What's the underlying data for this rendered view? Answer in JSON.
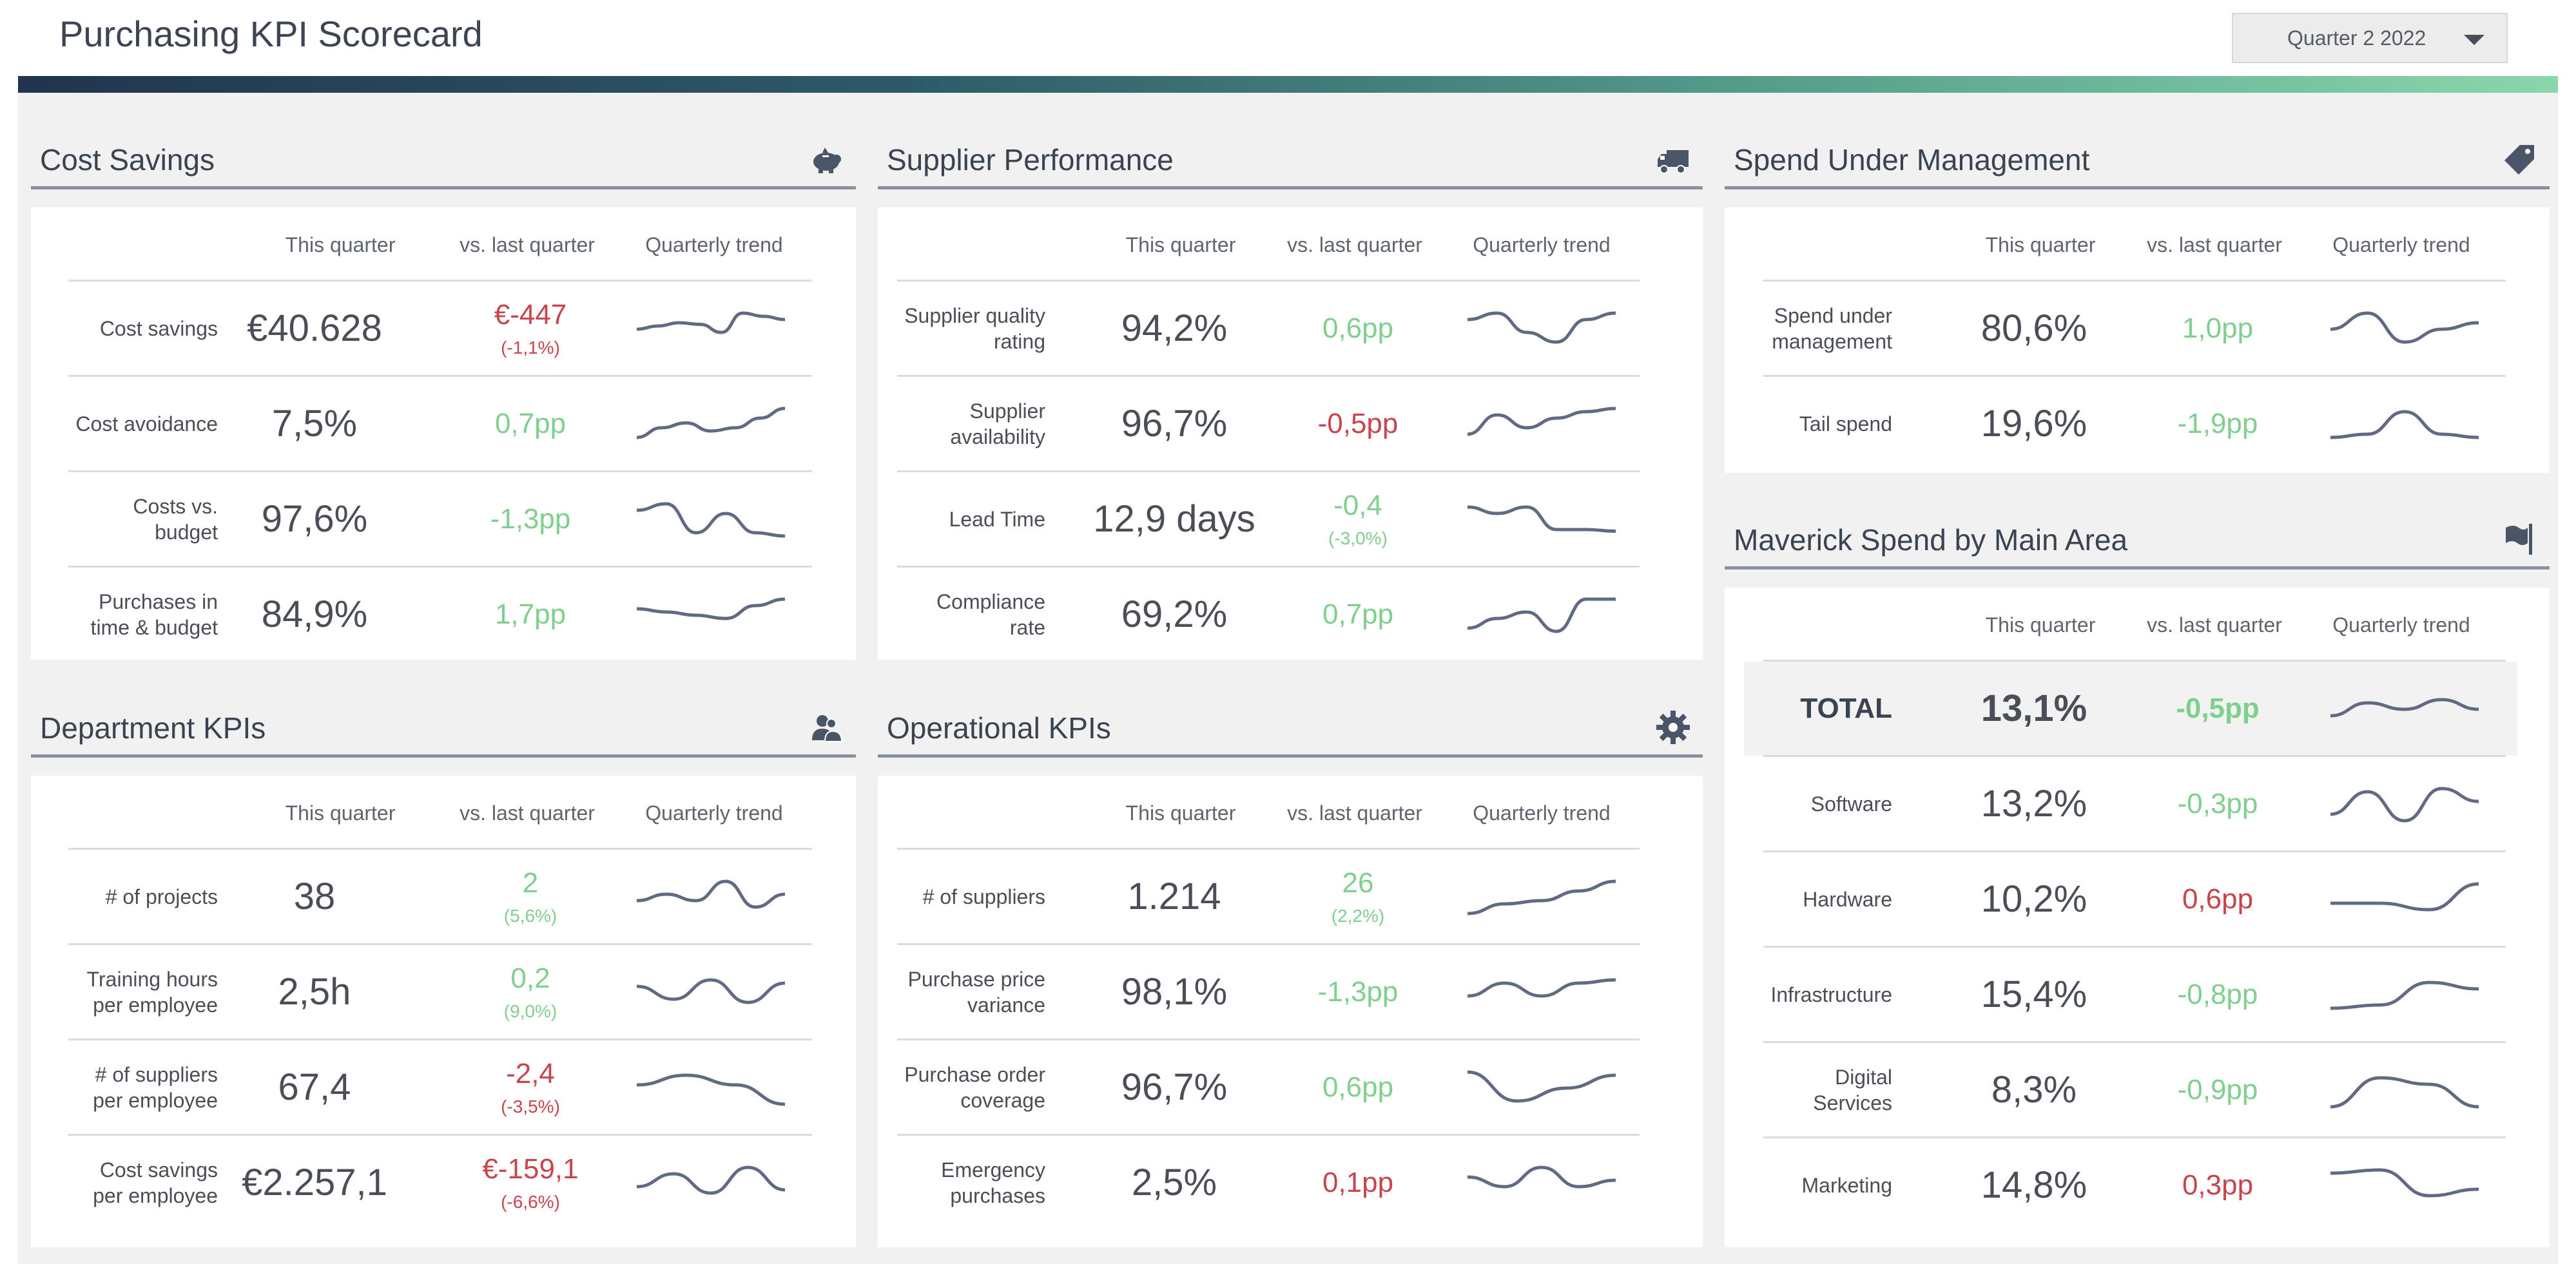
{
  "header": {
    "title": "Purchasing KPI Scorecard",
    "period": "Quarter 2 2022"
  },
  "columns": {
    "this_quarter": "This quarter",
    "vs_last": "vs. last quarter",
    "trend": "Quarterly trend"
  },
  "colors": {
    "positive": "#7fcf8e",
    "negative": "#c8454d",
    "sparkline": "#606a82"
  },
  "panels": {
    "cost_savings": {
      "title": "Cost Savings",
      "icon": "piggy-bank-icon",
      "rows": [
        {
          "label": "Cost savings",
          "value": "€40.628",
          "delta": "€-447",
          "delta_sub": "(-1,1%)",
          "status": "negative",
          "trend": [
            0.5,
            0.4,
            0.3,
            0.35,
            0.6,
            0.0,
            0.1,
            0.2
          ]
        },
        {
          "label": "Cost avoidance",
          "value": "7,5%",
          "delta": "0,7pp",
          "status": "positive",
          "trend": [
            0.9,
            0.6,
            0.45,
            0.7,
            0.6,
            0.3,
            0.0
          ]
        },
        {
          "label": "Costs vs. budget",
          "value": "97,6%",
          "delta": "-1,3pp",
          "status": "positive",
          "trend": [
            0.2,
            0.0,
            0.9,
            0.3,
            0.9,
            1.0
          ]
        },
        {
          "label": "Purchases in time & budget",
          "value": "84,9%",
          "delta": "1,7pp",
          "status": "positive",
          "trend": [
            0.3,
            0.4,
            0.5,
            0.6,
            0.2,
            0.0
          ]
        }
      ]
    },
    "supplier_performance": {
      "title": "Supplier Performance",
      "icon": "truck-icon",
      "rows": [
        {
          "label": "Supplier quality rating",
          "value": "94,2%",
          "delta": "0,6pp",
          "status": "positive",
          "trend": [
            0.2,
            0.0,
            0.6,
            0.9,
            0.2,
            0.0
          ]
        },
        {
          "label": "Supplier availability",
          "value": "96,7%",
          "delta": "-0,5pp",
          "status": "negative",
          "trend": [
            0.8,
            0.2,
            0.6,
            0.3,
            0.1,
            0.0
          ]
        },
        {
          "label": "Lead Time",
          "value": "12,9 days",
          "delta": "-0,4",
          "delta_sub": "(-3,0%)",
          "status": "positive",
          "trend": [
            0.1,
            0.3,
            0.1,
            0.8,
            0.8,
            0.85
          ]
        },
        {
          "label": "Compliance rate",
          "value": "69,2%",
          "delta": "0,7pp",
          "status": "positive",
          "trend": [
            0.9,
            0.6,
            0.4,
            1.0,
            0.0,
            0.0
          ]
        }
      ]
    },
    "spend_under_management": {
      "title": "Spend Under Management",
      "icon": "price-tag-icon",
      "rows": [
        {
          "label": "Spend under management",
          "value": "80,6%",
          "delta": "1,0pp",
          "status": "positive",
          "trend": [
            0.5,
            0.0,
            0.9,
            0.5,
            0.3
          ]
        },
        {
          "label": "Tail spend",
          "value": "19,6%",
          "delta": "-1,9pp",
          "status": "positive",
          "trend": [
            0.9,
            0.8,
            0.1,
            0.8,
            0.9
          ]
        }
      ]
    },
    "department_kpis": {
      "title": "Department KPIs",
      "icon": "user-group-icon",
      "rows": [
        {
          "label": "# of projects",
          "value": "38",
          "delta": "2",
          "delta_sub": "(5,6%)",
          "status": "positive",
          "trend": [
            0.6,
            0.4,
            0.6,
            0.0,
            0.8,
            0.4
          ]
        },
        {
          "label": "Training hours per employee",
          "value": "2,5h",
          "delta": "0,2",
          "delta_sub": "(9,0%)",
          "status": "positive",
          "trend": [
            0.3,
            0.7,
            0.1,
            0.8,
            0.2
          ]
        },
        {
          "label": "# of suppliers per employee",
          "value": "67,4",
          "delta": "-2,4",
          "delta_sub": "(-3,5%)",
          "status": "negative",
          "trend": [
            0.4,
            0.1,
            0.4,
            1.0
          ]
        },
        {
          "label": "Cost savings per employee",
          "value": "€2.257,1",
          "delta": "€-159,1",
          "delta_sub": "(-6,6%)",
          "status": "negative",
          "trend": [
            0.6,
            0.2,
            0.8,
            0.0,
            0.7
          ]
        }
      ]
    },
    "operational_kpis": {
      "title": "Operational KPIs",
      "icon": "gear-icon",
      "rows": [
        {
          "label": "# of suppliers",
          "value": "1.214",
          "delta": "26",
          "delta_sub": "(2,2%)",
          "status": "positive",
          "trend": [
            1.0,
            0.7,
            0.6,
            0.3,
            0.0
          ]
        },
        {
          "label": "Purchase price variance",
          "value": "98,1%",
          "delta": "-1,3pp",
          "status": "positive",
          "trend": [
            0.6,
            0.2,
            0.6,
            0.2,
            0.1
          ]
        },
        {
          "label": "Purchase order coverage",
          "value": "96,7%",
          "delta": "0,6pp",
          "status": "positive",
          "trend": [
            0.0,
            0.9,
            0.5,
            0.1
          ]
        },
        {
          "label": "Emergency purchases",
          "value": "2,5%",
          "delta": "0,1pp",
          "status": "negative",
          "trend": [
            0.3,
            0.6,
            0.0,
            0.6,
            0.4
          ]
        }
      ]
    },
    "maverick_spend": {
      "title": "Maverick Spend by Main Area",
      "icon": "flag-icon",
      "rows": [
        {
          "label": "TOTAL",
          "value": "13,1%",
          "delta": "-0,5pp",
          "status": "positive",
          "trend": [
            0.7,
            0.3,
            0.5,
            0.2,
            0.5
          ],
          "bold": true
        },
        {
          "label": "Software",
          "value": "13,2%",
          "delta": "-0,3pp",
          "status": "positive",
          "trend": [
            0.8,
            0.1,
            1.0,
            0.0,
            0.4
          ]
        },
        {
          "label": "Hardware",
          "value": "10,2%",
          "delta": "0,6pp",
          "status": "negative",
          "trend": [
            0.6,
            0.6,
            0.8,
            0.0
          ]
        },
        {
          "label": "Infrastructure",
          "value": "15,4%",
          "delta": "-0,8pp",
          "status": "positive",
          "trend": [
            0.9,
            0.8,
            0.1,
            0.3
          ]
        },
        {
          "label": "Digital Services",
          "value": "8,3%",
          "delta": "-0,9pp",
          "status": "positive",
          "trend": [
            1.0,
            0.1,
            0.3,
            1.0
          ]
        },
        {
          "label": "Marketing",
          "value": "14,8%",
          "delta": "0,3pp",
          "status": "negative",
          "trend": [
            0.1,
            0.0,
            0.8,
            0.6
          ]
        }
      ]
    }
  }
}
